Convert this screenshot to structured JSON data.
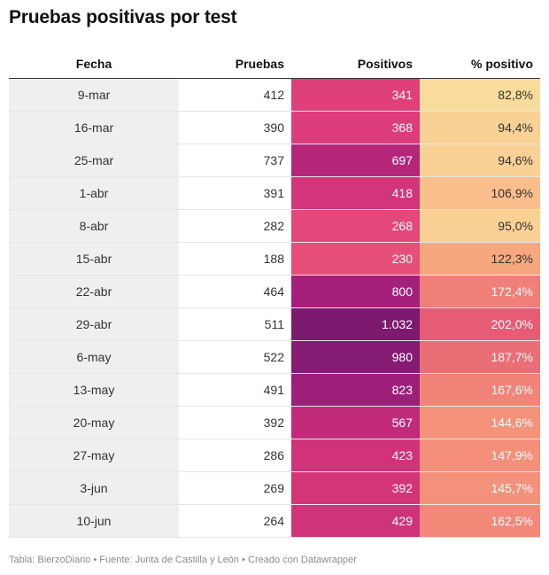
{
  "title": "Pruebas positivas por test",
  "footer": "Tabla: BierzoDiario • Fuente: Junta de Castilla y León • Creado con Datawrapper",
  "columns": [
    "Fecha",
    "Pruebas",
    "Positivos",
    "% positivo"
  ],
  "chart_data": {
    "type": "table",
    "columns": [
      "Fecha",
      "Pruebas",
      "Positivos",
      "% positivo"
    ],
    "rows": [
      {
        "fecha": "9-mar",
        "pruebas": "412",
        "positivos": "341",
        "pct": "82,8%",
        "pos_color": "#e0407a",
        "pct_color": "#f9dc9c",
        "pos_text": "#ffffff",
        "pct_text": "#333333"
      },
      {
        "fecha": "16-mar",
        "pruebas": "390",
        "positivos": "368",
        "pct": "94,4%",
        "pos_color": "#dd3d7a",
        "pct_color": "#fad195",
        "pos_text": "#ffffff",
        "pct_text": "#333333"
      },
      {
        "fecha": "25-mar",
        "pruebas": "737",
        "positivos": "697",
        "pct": "94,6%",
        "pos_color": "#b5267a",
        "pct_color": "#fad195",
        "pos_text": "#ffffff",
        "pct_text": "#333333"
      },
      {
        "fecha": "1-abr",
        "pruebas": "391",
        "positivos": "418",
        "pct": "106,9%",
        "pos_color": "#d23579",
        "pct_color": "#f9be8b",
        "pos_text": "#ffffff",
        "pct_text": "#333333"
      },
      {
        "fecha": "8-abr",
        "pruebas": "282",
        "positivos": "268",
        "pct": "95,0%",
        "pos_color": "#e4487a",
        "pct_color": "#fad195",
        "pos_text": "#ffffff",
        "pct_text": "#333333"
      },
      {
        "fecha": "15-abr",
        "pruebas": "188",
        "positivos": "230",
        "pct": "122,3%",
        "pos_color": "#e65078",
        "pct_color": "#f7a77e",
        "pos_text": "#ffffff",
        "pct_text": "#333333"
      },
      {
        "fecha": "22-abr",
        "pruebas": "464",
        "positivos": "800",
        "pct": "172,4%",
        "pos_color": "#a3207a",
        "pct_color": "#f07f78",
        "pos_text": "#ffffff",
        "pct_text": "#ffffff"
      },
      {
        "fecha": "29-abr",
        "pruebas": "511",
        "positivos": "1.032",
        "pct": "202,0%",
        "pos_color": "#7d1a70",
        "pct_color": "#e55c74",
        "pos_text": "#ffffff",
        "pct_text": "#ffffff"
      },
      {
        "fecha": "6-may",
        "pruebas": "522",
        "positivos": "980",
        "pct": "187,7%",
        "pos_color": "#861b73",
        "pct_color": "#ea6e76",
        "pos_text": "#ffffff",
        "pct_text": "#ffffff"
      },
      {
        "fecha": "13-may",
        "pruebas": "491",
        "positivos": "823",
        "pct": "167,6%",
        "pos_color": "#9e1f7a",
        "pct_color": "#f18378",
        "pos_text": "#ffffff",
        "pct_text": "#ffffff"
      },
      {
        "fecha": "20-may",
        "pruebas": "392",
        "positivos": "567",
        "pct": "144,6%",
        "pos_color": "#c22b7a",
        "pct_color": "#f4927a",
        "pos_text": "#ffffff",
        "pct_text": "#ffffff"
      },
      {
        "fecha": "27-may",
        "pruebas": "286",
        "positivos": "423",
        "pct": "147,9%",
        "pos_color": "#d03379",
        "pct_color": "#f4907a",
        "pos_text": "#ffffff",
        "pct_text": "#ffffff"
      },
      {
        "fecha": "3-jun",
        "pruebas": "269",
        "positivos": "392",
        "pct": "145,7%",
        "pos_color": "#d43579",
        "pct_color": "#f4917a",
        "pos_text": "#ffffff",
        "pct_text": "#ffffff"
      },
      {
        "fecha": "10-jun",
        "pruebas": "264",
        "positivos": "429",
        "pct": "162,5%",
        "pos_color": "#cf3379",
        "pct_color": "#f28878",
        "pos_text": "#ffffff",
        "pct_text": "#ffffff"
      }
    ]
  }
}
